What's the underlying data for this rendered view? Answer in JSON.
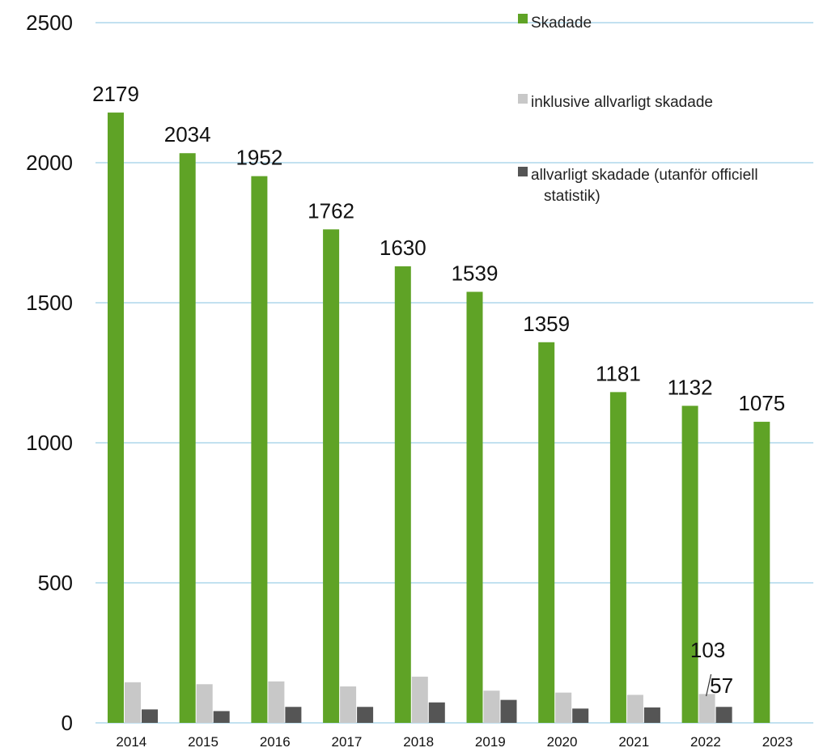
{
  "chart_data": {
    "type": "bar",
    "categories": [
      "2014",
      "2015",
      "2016",
      "2017",
      "2018",
      "2019",
      "2020",
      "2021",
      "2022",
      "2023"
    ],
    "ylim": [
      0,
      2500
    ],
    "yticks": [
      "0",
      "500",
      "1000",
      "1500",
      "2000",
      "2500"
    ],
    "grid": true,
    "legend_position": "top-right",
    "series": [
      {
        "name": "Skadade",
        "color": "#5fa326",
        "values": [
          2179,
          2034,
          1952,
          1762,
          1630,
          1539,
          1359,
          1181,
          1132,
          1075
        ],
        "labels": [
          "2179",
          "2034",
          "1952",
          "1762",
          "1630",
          "1539",
          "1359",
          "1181",
          "1132",
          "1075"
        ]
      },
      {
        "name": "inklusive allvarligt skadade",
        "color": "#c8c8c8",
        "values": [
          145,
          138,
          148,
          130,
          165,
          115,
          108,
          100,
          103,
          null
        ],
        "labels": [
          null,
          null,
          null,
          null,
          null,
          null,
          null,
          null,
          "103",
          null
        ]
      },
      {
        "name": "allvarligt skadade (utanför officiell statistik)",
        "legend_lines": [
          "allvarligt skadade (utanför officiell",
          "statistik)"
        ],
        "color": "#555555",
        "values": [
          48,
          42,
          57,
          57,
          73,
          82,
          51,
          55,
          57,
          null
        ],
        "labels": [
          null,
          null,
          null,
          null,
          null,
          null,
          null,
          null,
          "57",
          null
        ]
      }
    ]
  },
  "colors": {
    "gridline": "#9ecfe8",
    "text": "#111111"
  }
}
